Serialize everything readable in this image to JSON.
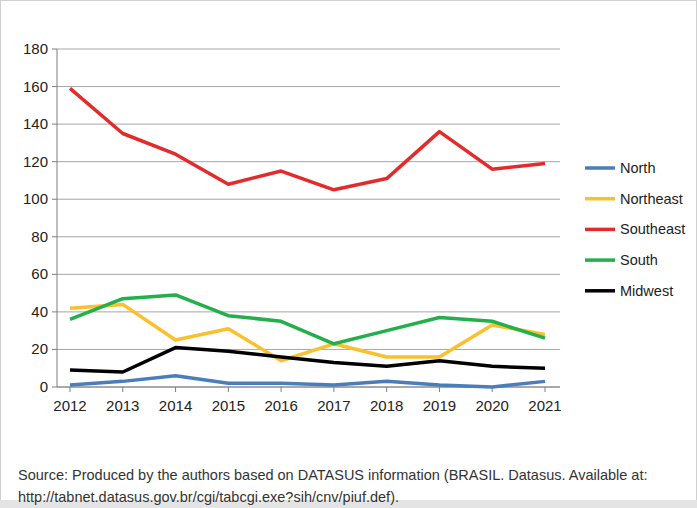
{
  "chart_data": {
    "type": "line",
    "categories": [
      "2012",
      "2013",
      "2014",
      "2015",
      "2016",
      "2017",
      "2018",
      "2019",
      "2020",
      "2021"
    ],
    "series": [
      {
        "name": "North",
        "color": "#4a7ebb",
        "values": [
          1,
          3,
          6,
          2,
          2,
          1,
          3,
          1,
          0,
          3
        ]
      },
      {
        "name": "Northeast",
        "color": "#fbc02d",
        "values": [
          42,
          44,
          25,
          31,
          14,
          23,
          16,
          16,
          33,
          28
        ]
      },
      {
        "name": "Southeast",
        "color": "#e42b2b",
        "values": [
          159,
          135,
          124,
          108,
          115,
          105,
          111,
          136,
          116,
          119
        ]
      },
      {
        "name": "South",
        "color": "#23b04b",
        "values": [
          36,
          47,
          49,
          38,
          35,
          23,
          30,
          37,
          35,
          26
        ]
      },
      {
        "name": "Midwest",
        "color": "#000000",
        "values": [
          9,
          8,
          21,
          19,
          16,
          13,
          11,
          14,
          11,
          10
        ]
      }
    ],
    "ylim": [
      0,
      180
    ],
    "yticks": [
      0,
      20,
      40,
      60,
      80,
      100,
      120,
      140,
      160,
      180
    ],
    "grid": true,
    "legend": "right",
    "annotations": [
      "Source: Produced by the authors based on DATASUS information (BRASIL. Datasus. Available at: http://tabnet.datasus.gov.br/cgi/tabcgi.exe?sih/cnv/piuf.def)."
    ]
  }
}
